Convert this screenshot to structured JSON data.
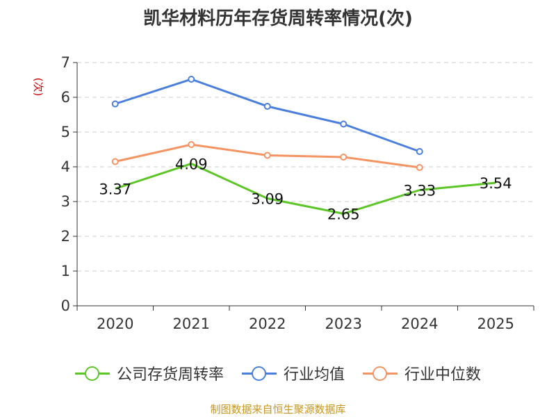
{
  "title": "凯华材料历年存货周转率情况(次)",
  "source": "制图数据来自恒生聚源数据库",
  "chart_data": {
    "type": "line",
    "title": "凯华材料历年存货周转率情况(次)",
    "ylabel": "(次)",
    "xlabel": "",
    "categories": [
      "2020",
      "2021",
      "2022",
      "2023",
      "2024",
      "2025"
    ],
    "ylim": [
      0,
      7
    ],
    "yticks": [
      0,
      1,
      2,
      3,
      4,
      5,
      6,
      7
    ],
    "grid": true,
    "legend_position": "bottom",
    "series": [
      {
        "name": "公司存货周转率",
        "color": "#5cc626",
        "values": [
          3.37,
          4.09,
          3.09,
          2.65,
          3.33,
          3.54
        ],
        "labels": [
          "3.37",
          "4.09",
          "3.09",
          "2.65",
          "3.33",
          "3.54"
        ]
      },
      {
        "name": "行业均值",
        "color": "#4a7fdd",
        "values": [
          5.81,
          6.52,
          5.74,
          5.23,
          4.44,
          null
        ]
      },
      {
        "name": "行业中位数",
        "color": "#f59463",
        "values": [
          4.15,
          4.64,
          4.33,
          4.28,
          3.98,
          null
        ]
      }
    ]
  }
}
